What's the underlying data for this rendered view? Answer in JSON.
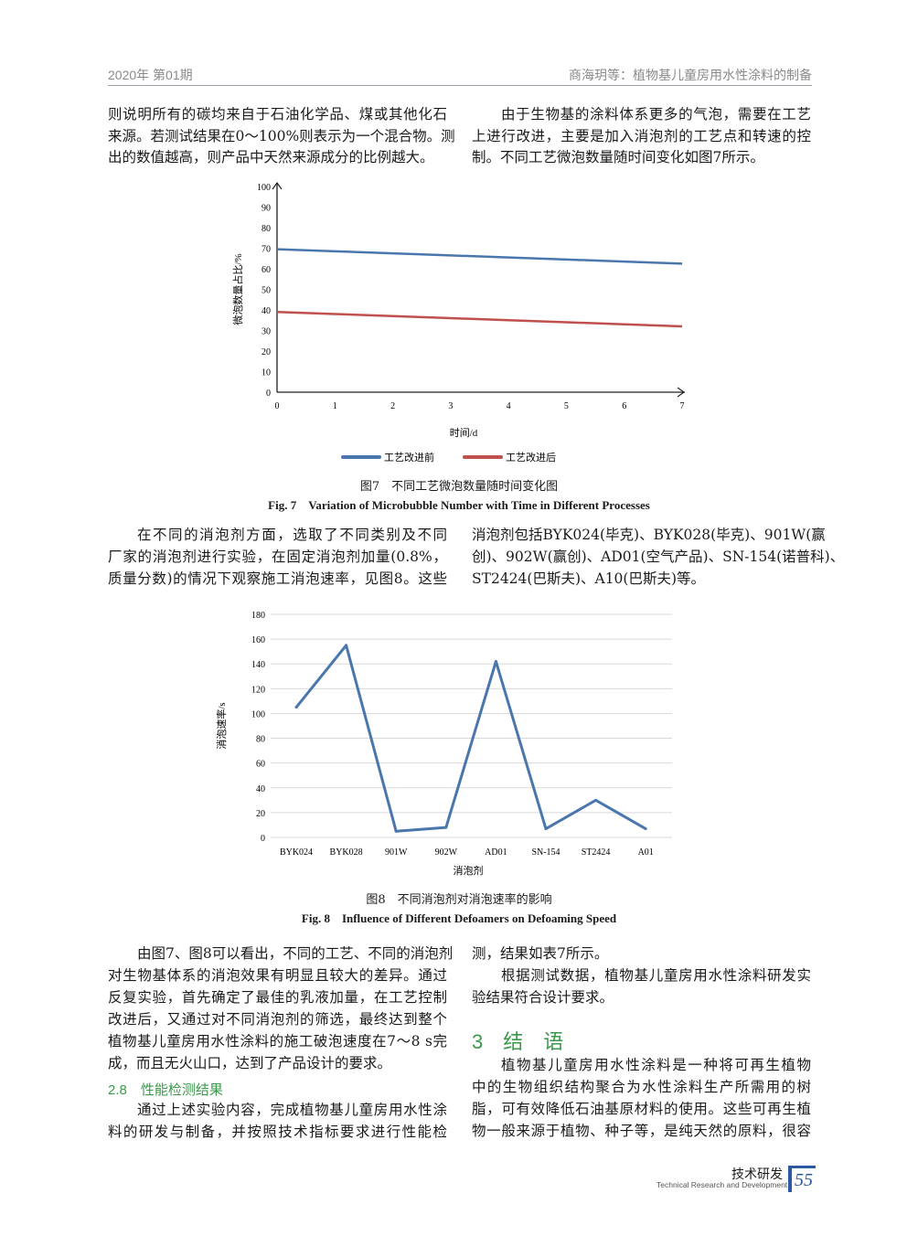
{
  "header": {
    "issue": "2020年 第01期",
    "running_title": "商海玥等：植物基儿童房用水性涂料的制备"
  },
  "text_top_left": [
    "则说明所有的碳均来自于石油化学品、煤或其他化石",
    "来源。若测试结果在0～100%则表示为一个混合物。测",
    "出的数值越高，则产品中天然来源成分的比例越大。"
  ],
  "text_top_right": [
    "由于生物基的涂料体系更多的气泡，需要在工艺",
    "上进行改进，主要是加入消泡剂的工艺点和转速的控",
    "制。不同工艺微泡数量随时间变化如图7所示。"
  ],
  "text_mid_left": [
    "在不同的消泡剂方面，选取了不同类别及不同",
    "厂家的消泡剂进行实验，在固定消泡剂加量(0.8%，",
    "质量分数)的情况下观察施工消泡速率，见图8。这些"
  ],
  "text_mid_right": [
    "消泡剂包括BYK024(毕克)、BYK028(毕克)、901W(赢",
    "创)、902W(赢创)、AD01(空气产品)、SN-154(诺普科)、",
    "ST2424(巴斯夫)、A10(巴斯夫)等。"
  ],
  "text_bottom_left": [
    "由图7、图8可以看出，不同的工艺、不同的消泡剂",
    "对生物基体系的消泡效果有明显且较大的差异。通过",
    "反复实验，首先确定了最佳的乳液加量，在工艺控制",
    "改进后，又通过对不同消泡剂的筛选，最终达到整个",
    "植物基儿童房用水性涂料的施工破泡速度在7～8 s完",
    "成，而且无火山口，达到了产品设计的要求。"
  ],
  "section_2_8": "2.8　性能检测结果",
  "text_bottom_left2": [
    "通过上述实验内容，完成植物基儿童房用水性涂",
    "料的研发与制备，并按照技术指标要求进行性能检"
  ],
  "text_bottom_right": [
    "测，结果如表7所示。",
    "根据测试数据，植物基儿童房用水性涂料研发实",
    "验结果符合设计要求。"
  ],
  "section_3": "3　结　语",
  "text_bottom_right2": [
    "植物基儿童房用水性涂料是一种将可再生植物",
    "中的生物组织结构聚合为水性涂料生产所需用的树",
    "脂，可有效降低石油基原材料的使用。这些可再生植",
    "物一般来源于植物、种子等，是纯天然的原料，很容"
  ],
  "chart_data": [
    {
      "type": "line",
      "x": [
        0,
        1,
        2,
        3,
        4,
        5,
        6,
        7
      ],
      "xlabel": "时间/d",
      "ylabel": "微泡数量占比/%",
      "xlim": [
        0,
        7
      ],
      "ylim": [
        0,
        100
      ],
      "yticks": [
        0,
        10,
        20,
        30,
        40,
        50,
        60,
        70,
        80,
        90,
        100
      ],
      "grid": false,
      "legend": "bottom",
      "series": [
        {
          "name": "工艺改进前",
          "color": "#4a76ae",
          "values": [
            69.5,
            68.5,
            67.5,
            66.5,
            65.5,
            64.5,
            63.5,
            62.5
          ]
        },
        {
          "name": "工艺改进后",
          "color": "#c0504d",
          "values": [
            39,
            38,
            37,
            36,
            35,
            34,
            33,
            32
          ]
        }
      ],
      "caption_cn": "图7　不同工艺微泡数量随时间变化图",
      "caption_en": "Fig. 7　Variation of Microbubble Number with Time in Different Processes"
    },
    {
      "type": "line",
      "categories": [
        "BYK024",
        "BYK028",
        "901W",
        "902W",
        "AD01",
        "SN-154",
        "ST2424",
        "A01"
      ],
      "values": [
        105,
        155,
        5,
        8,
        142,
        7,
        30,
        7
      ],
      "color": "#4a76ae",
      "xlabel": "消泡剂",
      "ylabel": "消泡速率/s",
      "ylim": [
        0,
        180
      ],
      "yticks": [
        0,
        20,
        40,
        60,
        80,
        100,
        120,
        140,
        160,
        180
      ],
      "grid": true,
      "caption_cn": "图8　不同消泡剂对消泡速率的影响",
      "caption_en": "Fig. 8　Influence of Different Defoamers on Defoaming Speed"
    }
  ],
  "footer": {
    "section_cn": "技术研发",
    "section_en": "Technical Research and Development",
    "page_number": "55"
  }
}
